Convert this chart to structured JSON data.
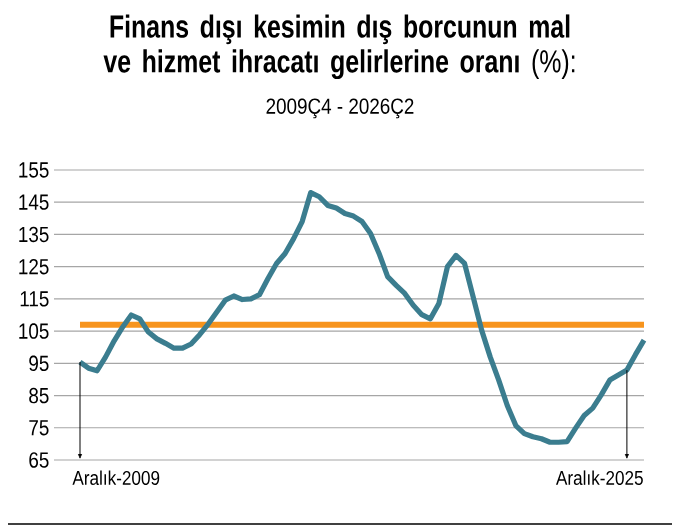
{
  "chart_data": {
    "type": "line",
    "title": "**Finans dışı kesimin dış borcunun mal ve hizmet ihracatı gelirlerine oranı** (%):",
    "subtitle": "2009Ç4 - 2026Ç2",
    "categories": [
      null,
      null,
      null,
      null,
      null,
      null,
      null,
      null,
      null,
      null,
      null,
      null,
      null,
      null,
      null,
      null,
      null,
      null,
      null,
      null,
      null,
      null,
      null,
      null,
      null,
      null,
      null,
      null,
      null,
      null,
      null,
      null,
      null,
      null,
      null,
      null,
      null,
      null,
      null,
      null,
      null,
      null,
      null,
      null,
      null,
      null,
      null,
      null,
      null,
      null,
      null,
      null,
      null,
      null,
      null,
      null,
      null,
      null,
      null,
      null,
      null,
      null,
      null,
      null,
      null,
      null,
      null
    ],
    "series": [
      {
        "color": "#3b7d8f",
        "values": [
          95.4,
          93.5,
          92.7,
          97,
          102,
          106.3,
          110,
          108.8,
          104.7,
          102.6,
          101.2,
          99.7,
          99.7,
          101,
          103.9,
          107.2,
          110.9,
          114.6,
          115.9,
          114.8,
          115,
          116.3,
          121.3,
          126,
          129.1,
          133.7,
          139,
          148,
          146.7,
          144,
          143.2,
          141.5,
          140.7,
          139,
          135.3,
          129.1,
          121.9,
          119.2,
          116.7,
          113,
          110.1,
          108.8,
          113.6,
          125,
          128.5,
          126,
          115.7,
          105.3,
          97,
          89.8,
          81.9,
          75.7,
          73.2,
          72.2,
          71.6,
          70.5,
          70.5,
          70.7,
          74.9,
          78.8,
          81.1,
          85.2,
          89.8,
          91.4,
          92.9,
          97.7,
          102.2
        ]
      }
    ],
    "ylim": [
      65,
      155
    ],
    "yticks": [
      65,
      75,
      85,
      95,
      105,
      115,
      125,
      135,
      145,
      155
    ],
    "grid": "y",
    "tick_labels": "y",
    "ref_lines": [
      {
        "axis": "y",
        "value": 107,
        "color": "#f7941d"
      }
    ],
    "annotations": [
      "Aralık-2009",
      "Aralık-2025"
    ]
  }
}
